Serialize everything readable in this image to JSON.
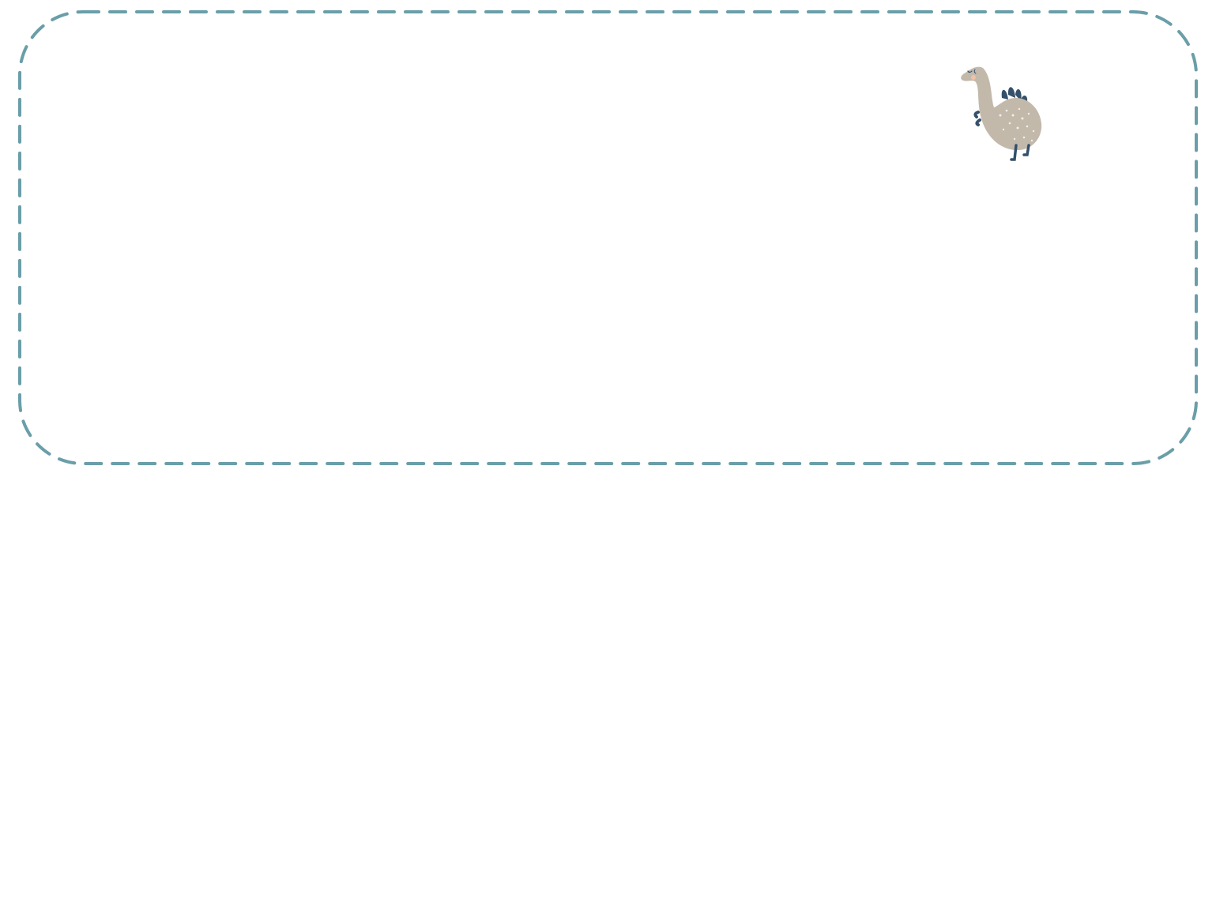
{
  "canvas": {
    "background": "#ffffff"
  },
  "frame": {
    "border_style": "dashed",
    "border_color": "#6a9ea8",
    "content": ""
  },
  "decoration": {
    "icon": "dinosaur-icon",
    "colors": {
      "body": "#c2b9ab",
      "spikes": "#34506a",
      "dots": "#f1eee9",
      "cheek": "#f0c2a6"
    }
  }
}
